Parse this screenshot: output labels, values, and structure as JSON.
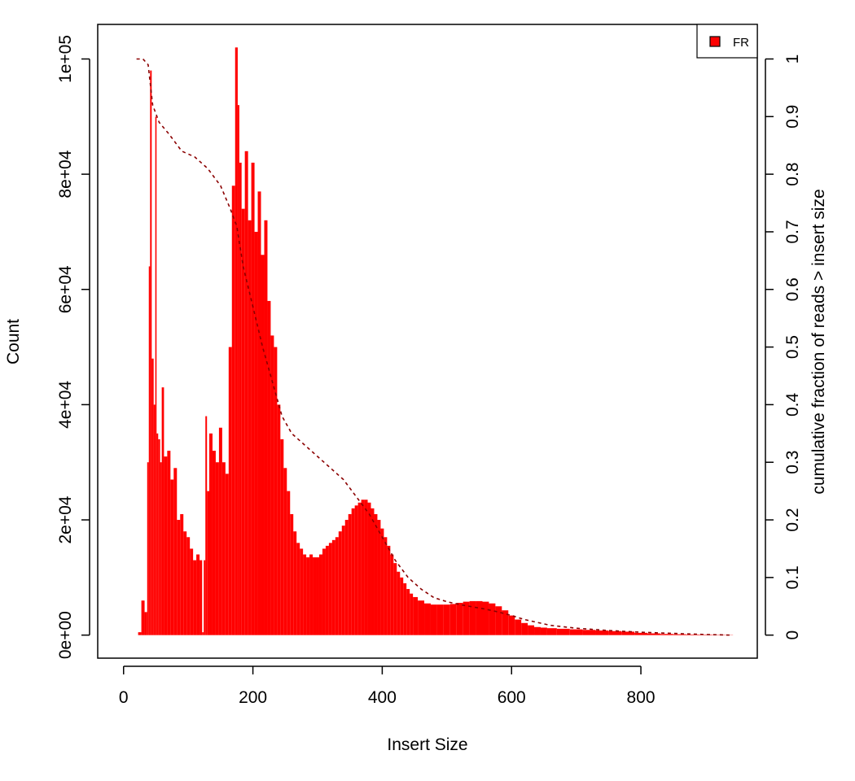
{
  "chart_data": {
    "type": "bar",
    "title": "",
    "xlabel": "Insert Size",
    "ylabel": "Count",
    "y2label": "cumulative fraction of reads > insert size",
    "xlim": [
      -40,
      980
    ],
    "ylim": [
      -4000,
      106000
    ],
    "y2lim": [
      -0.04,
      1.06
    ],
    "xticks": [
      0,
      200,
      400,
      600,
      800
    ],
    "xtick_labels": [
      "0",
      "200",
      "400",
      "600",
      "800"
    ],
    "yticks": [
      0,
      20000,
      40000,
      60000,
      80000,
      100000
    ],
    "ytick_labels": [
      "0e+00",
      "2e+04",
      "4e+04",
      "6e+04",
      "8e+04",
      "1e+05"
    ],
    "y2ticks": [
      0,
      0.1,
      0.2,
      0.3,
      0.4,
      0.5,
      0.6,
      0.7,
      0.8,
      0.9,
      1
    ],
    "y2tick_labels": [
      "0",
      "0.1",
      "0.2",
      "0.3",
      "0.4",
      "0.5",
      "0.6",
      "0.7",
      "0.8",
      "0.9",
      "1"
    ],
    "grid": false,
    "legend": {
      "position": "top-right",
      "entries": [
        {
          "label": "FR",
          "color": "#ff0000"
        }
      ]
    },
    "series": [
      {
        "name": "FR",
        "color": "#ff0000",
        "x": [
          25,
          30,
          35,
          38,
          40,
          42,
          45,
          48,
          50,
          52,
          55,
          58,
          60,
          65,
          70,
          75,
          80,
          85,
          90,
          95,
          100,
          105,
          110,
          115,
          120,
          123,
          125,
          128,
          130,
          135,
          140,
          145,
          150,
          155,
          160,
          165,
          170,
          175,
          178,
          180,
          185,
          190,
          195,
          200,
          205,
          210,
          215,
          220,
          225,
          230,
          235,
          240,
          245,
          250,
          255,
          260,
          265,
          270,
          275,
          280,
          285,
          290,
          295,
          300,
          305,
          310,
          315,
          320,
          325,
          330,
          335,
          340,
          345,
          350,
          355,
          360,
          365,
          370,
          375,
          380,
          385,
          390,
          395,
          400,
          405,
          410,
          415,
          420,
          425,
          430,
          435,
          440,
          445,
          450,
          460,
          470,
          480,
          490,
          500,
          510,
          520,
          530,
          540,
          550,
          560,
          570,
          580,
          590,
          600,
          610,
          620,
          630,
          640,
          650,
          660,
          680,
          700,
          720,
          740,
          760,
          780,
          800,
          820,
          840,
          860,
          880,
          900,
          920,
          940
        ],
        "values": [
          500,
          6000,
          4000,
          30000,
          64000,
          98000,
          48000,
          40000,
          90000,
          35000,
          34000,
          30000,
          43000,
          31000,
          32000,
          27000,
          29000,
          20000,
          21000,
          18000,
          17000,
          15000,
          13000,
          14000,
          13000,
          500,
          13000,
          38000,
          25000,
          35000,
          32000,
          30000,
          36000,
          30000,
          28000,
          50000,
          78000,
          102000,
          92000,
          82000,
          74000,
          84000,
          72000,
          82000,
          70000,
          77000,
          66000,
          72000,
          58000,
          52000,
          50000,
          40000,
          34000,
          29000,
          25000,
          21000,
          18000,
          16000,
          15000,
          14000,
          13500,
          14000,
          13500,
          13500,
          14000,
          15000,
          15500,
          16000,
          16500,
          17000,
          18000,
          19000,
          20000,
          21000,
          22000,
          22500,
          23000,
          23500,
          23500,
          23000,
          22000,
          21000,
          20000,
          18500,
          17000,
          15500,
          14000,
          12500,
          11000,
          10000,
          9000,
          8000,
          7200,
          6600,
          6000,
          5500,
          5300,
          5300,
          5300,
          5400,
          5600,
          5800,
          5900,
          5900,
          5800,
          5500,
          5000,
          4300,
          3400,
          2700,
          2100,
          1700,
          1400,
          1300,
          1200,
          1100,
          1000,
          900,
          800,
          700,
          600,
          400,
          300,
          200,
          150,
          100,
          80,
          60,
          40
        ]
      },
      {
        "name": "cumulative fraction of reads > insert size",
        "axis": "right",
        "style": "dashed",
        "color": "#8b0000",
        "x": [
          20,
          30,
          38,
          45,
          55,
          70,
          90,
          110,
          130,
          150,
          165,
          175,
          185,
          200,
          215,
          230,
          245,
          260,
          280,
          300,
          320,
          340,
          360,
          380,
          400,
          420,
          440,
          460,
          480,
          500,
          520,
          540,
          560,
          580,
          600,
          620,
          640,
          660,
          700,
          750,
          800,
          850,
          900,
          940
        ],
        "values": [
          1.0,
          1.0,
          0.99,
          0.92,
          0.89,
          0.87,
          0.84,
          0.83,
          0.81,
          0.78,
          0.74,
          0.71,
          0.64,
          0.57,
          0.5,
          0.44,
          0.38,
          0.35,
          0.33,
          0.31,
          0.29,
          0.27,
          0.24,
          0.21,
          0.17,
          0.13,
          0.1,
          0.08,
          0.065,
          0.058,
          0.053,
          0.049,
          0.045,
          0.04,
          0.034,
          0.027,
          0.022,
          0.017,
          0.012,
          0.008,
          0.005,
          0.003,
          0.001,
          0.0
        ]
      }
    ]
  }
}
